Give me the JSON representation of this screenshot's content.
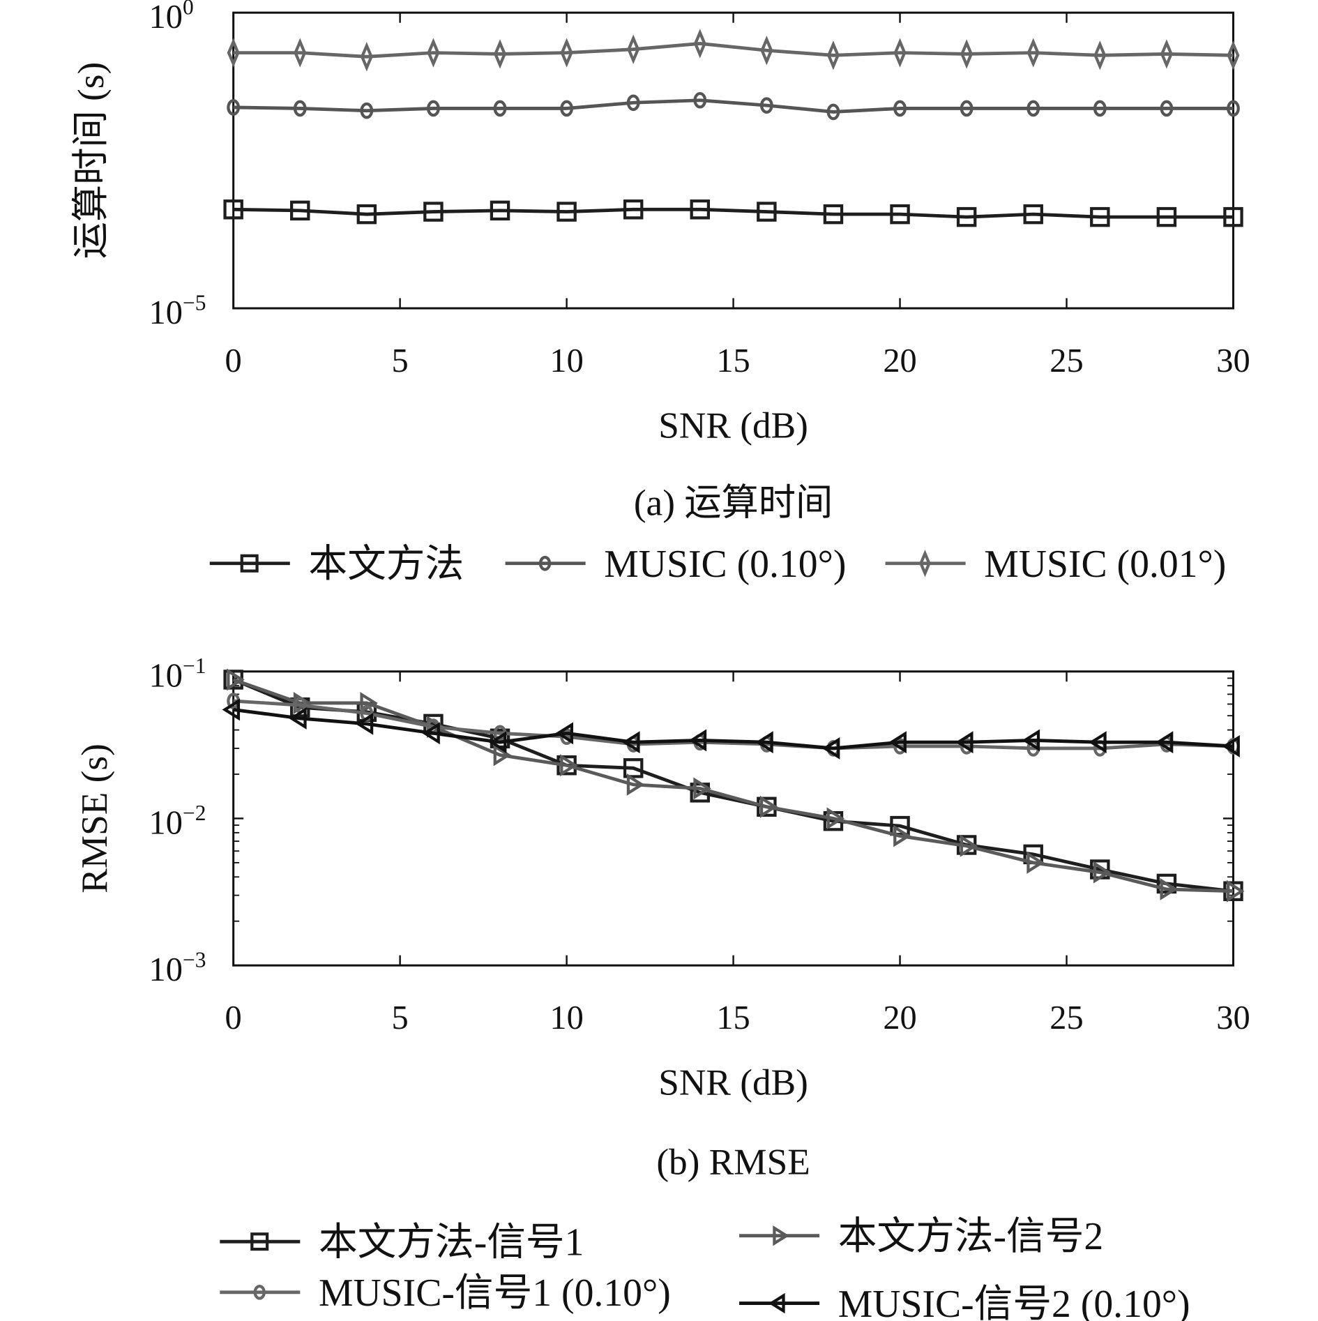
{
  "chart_data": [
    {
      "type": "line",
      "title": "(a) 运算时间",
      "xlabel": "SNR (dB)",
      "ylabel": "运算时间 (s)",
      "yscale": "log",
      "xlim": [
        0,
        30
      ],
      "ylim": [
        1e-05,
        1
      ],
      "xticks": [
        "0",
        "5",
        "10",
        "15",
        "20",
        "25",
        "30"
      ],
      "yticks": [
        {
          "base": "10",
          "exp": "0"
        },
        {
          "base": "10",
          "exp": "−5"
        }
      ],
      "legend_placement": "bottom",
      "x": [
        0,
        2,
        4,
        6,
        8,
        10,
        12,
        14,
        16,
        18,
        20,
        22,
        24,
        26,
        28,
        30
      ],
      "series": [
        {
          "name": "本文方法",
          "marker": "square",
          "color": "#1e1e1e",
          "values": [
            0.00047,
            0.00045,
            0.00039,
            0.00043,
            0.00045,
            0.00043,
            0.00047,
            0.00047,
            0.00043,
            0.00039,
            0.00039,
            0.00035,
            0.00039,
            0.00035,
            0.00035,
            0.00035
          ]
        },
        {
          "name": "MUSIC (0.10°)",
          "marker": "circle",
          "color": "#555555",
          "values": [
            0.025,
            0.024,
            0.022,
            0.024,
            0.024,
            0.024,
            0.03,
            0.033,
            0.027,
            0.021,
            0.024,
            0.024,
            0.024,
            0.024,
            0.024,
            0.024
          ]
        },
        {
          "name": "MUSIC (0.01°)",
          "marker": "diamond",
          "color": "#666666",
          "values": [
            0.21,
            0.21,
            0.18,
            0.21,
            0.2,
            0.21,
            0.24,
            0.3,
            0.23,
            0.19,
            0.21,
            0.2,
            0.21,
            0.19,
            0.2,
            0.19
          ]
        }
      ]
    },
    {
      "type": "line",
      "title": "(b) RMSE",
      "xlabel": "SNR (dB)",
      "ylabel": "RMSE (s)",
      "yscale": "log",
      "xlim": [
        0,
        30
      ],
      "ylim": [
        0.001,
        0.1
      ],
      "xticks": [
        "0",
        "5",
        "10",
        "15",
        "20",
        "25",
        "30"
      ],
      "yticks": [
        {
          "base": "10",
          "exp": "−1"
        },
        {
          "base": "10",
          "exp": "−2"
        },
        {
          "base": "10",
          "exp": "−3"
        }
      ],
      "legend_placement": "bottom",
      "x": [
        0,
        2,
        4,
        6,
        8,
        10,
        12,
        14,
        16,
        18,
        20,
        22,
        24,
        26,
        28,
        30
      ],
      "series": [
        {
          "name": "本文方法-信号1",
          "marker": "square",
          "color": "#1e1e1e",
          "values": [
            0.088,
            0.057,
            0.053,
            0.044,
            0.035,
            0.023,
            0.022,
            0.015,
            0.012,
            0.0096,
            0.0089,
            0.0066,
            0.0057,
            0.0045,
            0.0036,
            0.0032
          ]
        },
        {
          "name": "本文方法-信号2",
          "marker": "triangle-right",
          "color": "#5a5a5a",
          "values": [
            0.088,
            0.061,
            0.061,
            0.042,
            0.027,
            0.023,
            0.017,
            0.016,
            0.012,
            0.01,
            0.0076,
            0.0065,
            0.005,
            0.0043,
            0.0033,
            0.0032
          ]
        },
        {
          "name": "MUSIC-信号1 (0.10°)",
          "marker": "circle",
          "color": "#666666",
          "values": [
            0.063,
            0.059,
            0.052,
            0.042,
            0.038,
            0.036,
            0.032,
            0.033,
            0.032,
            0.03,
            0.031,
            0.031,
            0.03,
            0.03,
            0.032,
            0.031
          ]
        },
        {
          "name": "MUSIC-信号2 (0.10°)",
          "marker": "triangle-left",
          "color": "#111111",
          "values": [
            0.055,
            0.048,
            0.044,
            0.038,
            0.033,
            0.038,
            0.033,
            0.034,
            0.033,
            0.03,
            0.033,
            0.033,
            0.034,
            0.033,
            0.033,
            0.031
          ]
        }
      ]
    }
  ]
}
